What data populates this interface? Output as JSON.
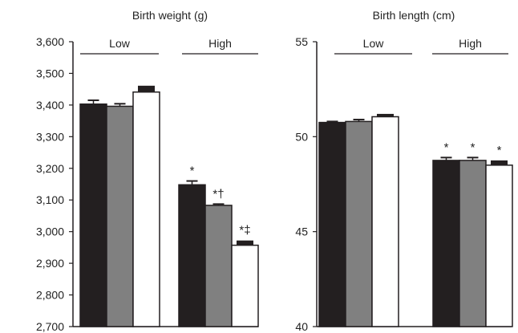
{
  "chart_data": [
    {
      "type": "bar",
      "title": "Birth weight (g)",
      "xlabel": "",
      "ylabel": "",
      "ylim": [
        2700,
        3600
      ],
      "yticks": [
        "3,600",
        "3,500",
        "3,400",
        "3,300",
        "3,200",
        "3,100",
        "3,000",
        "2,900",
        "2,800",
        "2,700"
      ],
      "tick_values": [
        3600,
        3500,
        3400,
        3300,
        3200,
        3100,
        3000,
        2900,
        2800,
        2700
      ],
      "groups": [
        {
          "label": "Low",
          "values": [
            3403,
            3396,
            3441
          ],
          "errors": [
            12,
            8,
            20
          ],
          "annotations": [
            "",
            "",
            ""
          ]
        },
        {
          "label": "High",
          "values": [
            3148,
            3083,
            2957
          ],
          "errors": [
            12,
            4,
            15
          ],
          "annotations": [
            "*",
            "*†",
            "*‡"
          ]
        }
      ],
      "bar_colors": [
        "#231f20",
        "#808080",
        "#ffffff"
      ]
    },
    {
      "type": "bar",
      "title": "Birth length (cm)",
      "xlabel": "",
      "ylabel": "",
      "ylim": [
        40,
        55
      ],
      "yticks": [
        "55",
        "50",
        "45",
        "40"
      ],
      "tick_values": [
        55,
        50,
        45,
        40
      ],
      "groups": [
        {
          "label": "Low",
          "values": [
            50.75,
            50.8,
            51.05
          ],
          "errors": [
            0.05,
            0.1,
            0.15
          ],
          "annotations": [
            "",
            "",
            ""
          ]
        },
        {
          "label": "High",
          "values": [
            48.75,
            48.75,
            48.5
          ],
          "errors": [
            0.15,
            0.15,
            0.25
          ],
          "annotations": [
            "*",
            "*",
            "*"
          ]
        }
      ],
      "bar_colors": [
        "#231f20",
        "#808080",
        "#ffffff"
      ]
    }
  ]
}
